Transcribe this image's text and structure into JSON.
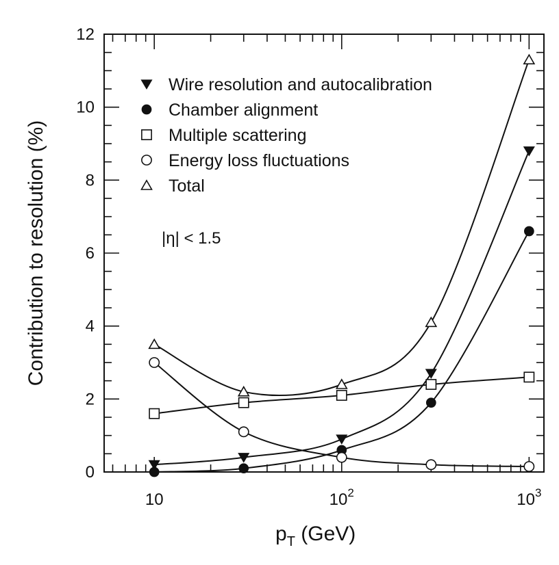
{
  "chart_data": {
    "type": "line",
    "title": "",
    "xlabel_main": "p",
    "xlabel_sub": "T",
    "xlabel_unit": " (GeV)",
    "ylabel": "Contribution to resolution (%)",
    "x_scale": "log",
    "xlim": [
      5.4,
      1200
    ],
    "ylim": [
      0,
      12
    ],
    "x_ticks": [
      {
        "value": 10,
        "base": "10",
        "exp": ""
      },
      {
        "value": 100,
        "base": "10",
        "exp": "2"
      },
      {
        "value": 1000,
        "base": "10",
        "exp": "3"
      }
    ],
    "y_ticks": [
      0,
      2,
      4,
      6,
      8,
      10,
      12
    ],
    "grid": false,
    "legend_position": "top-left",
    "annotation": "|η| < 1.5",
    "x": [
      10,
      30,
      100,
      300,
      1000
    ],
    "series": [
      {
        "name": "Wire resolution and autocalibration",
        "marker": "filled-triangle-down",
        "values": [
          0.2,
          0.4,
          0.9,
          2.7,
          8.8
        ]
      },
      {
        "name": "Chamber alignment",
        "marker": "filled-circle",
        "values": [
          0.0,
          0.1,
          0.6,
          1.9,
          6.6
        ]
      },
      {
        "name": "Multiple scattering",
        "marker": "open-square",
        "values": [
          1.6,
          1.9,
          2.1,
          2.4,
          2.6
        ]
      },
      {
        "name": "Energy loss fluctuations",
        "marker": "open-circle",
        "values": [
          3.0,
          1.1,
          0.4,
          0.2,
          0.15
        ]
      },
      {
        "name": "Total",
        "marker": "open-triangle-up",
        "values": [
          3.5,
          2.2,
          2.4,
          4.1,
          11.3
        ]
      }
    ]
  }
}
